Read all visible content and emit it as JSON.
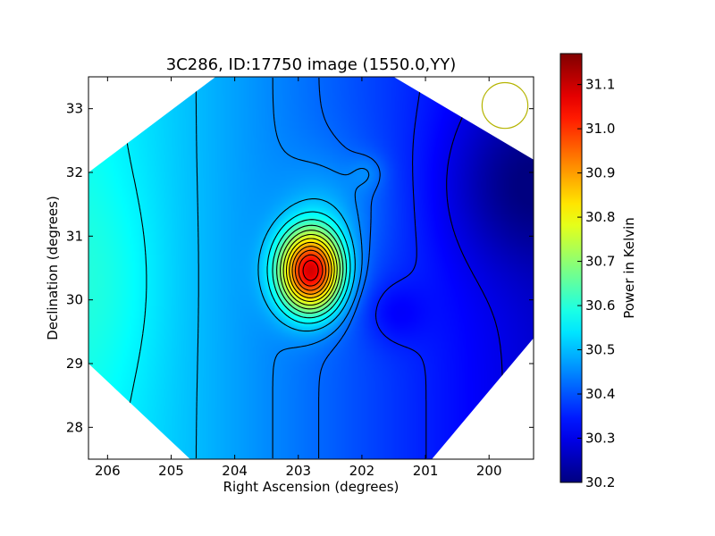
{
  "chart_data": {
    "type": "heatmap",
    "title": "3C286, ID:17750 image (1550.0,YY)",
    "xlabel": "Right Ascension (degrees)",
    "ylabel": "Declination (degrees)",
    "xlim": [
      206.3,
      199.3
    ],
    "ylim": [
      27.5,
      33.5
    ],
    "x_inverted": true,
    "x_ticks": [
      206,
      205,
      204,
      203,
      202,
      201,
      200
    ],
    "x_tick_labels": [
      "206",
      "205",
      "204",
      "203",
      "202",
      "201",
      "200"
    ],
    "y_ticks": [
      28,
      29,
      30,
      31,
      32,
      33
    ],
    "y_tick_labels": [
      "28",
      "29",
      "30",
      "31",
      "32",
      "33"
    ],
    "footprint": [
      [
        204.3,
        33.5
      ],
      [
        201.5,
        33.5
      ],
      [
        199.3,
        32.2
      ],
      [
        199.3,
        29.4
      ],
      [
        200.9,
        27.5
      ],
      [
        204.7,
        27.5
      ],
      [
        206.3,
        29.0
      ],
      [
        206.3,
        32.0
      ]
    ],
    "colorbar": {
      "label": "Power in Kelvin",
      "min": 30.2,
      "max": 31.17,
      "ticks": [
        30.2,
        30.3,
        30.4,
        30.5,
        30.6,
        30.7,
        30.8,
        30.9,
        31.0,
        31.1
      ],
      "tick_labels": [
        "30.2",
        "30.3",
        "30.4",
        "30.5",
        "30.6",
        "30.7",
        "30.8",
        "30.9",
        "31.0",
        "31.1"
      ],
      "colormap": "jet"
    },
    "field": {
      "background_gradient": {
        "ra_start": 206.3,
        "value_start": 30.57,
        "ra_end": 199.3,
        "value_end": 30.28
      },
      "sources": [
        {
          "ra": 202.8,
          "dec": 30.45,
          "peak": 0.65,
          "sigma_ra": 0.35,
          "sigma_dec": 0.45
        },
        {
          "ra": 202.45,
          "dec": 31.45,
          "peak": 0.06,
          "sigma_ra": 0.55,
          "sigma_dec": 0.6
        },
        {
          "ra": 201.9,
          "dec": 32.0,
          "peak": 0.04,
          "sigma_ra": 0.2,
          "sigma_dec": 0.2
        },
        {
          "ra": 199.6,
          "dec": 31.8,
          "peak": -0.09,
          "sigma_ra": 0.8,
          "sigma_dec": 0.9
        },
        {
          "ra": 201.5,
          "dec": 29.8,
          "peak": -0.05,
          "sigma_ra": 0.35,
          "sigma_dec": 0.35
        },
        {
          "ra": 206.0,
          "dec": 30.3,
          "peak": 0.03,
          "sigma_ra": 0.6,
          "sigma_dec": 1.2
        }
      ],
      "contour_levels": [
        30.3,
        30.35,
        30.42,
        30.45,
        30.5,
        30.55,
        30.6,
        30.65,
        30.7,
        30.75,
        30.8,
        30.85,
        30.9,
        30.95,
        31.0,
        31.05,
        31.1
      ]
    },
    "beam_circle": {
      "ra": 199.75,
      "dec": 33.05,
      "radius_deg": 0.36,
      "color": "#b5b400"
    }
  }
}
